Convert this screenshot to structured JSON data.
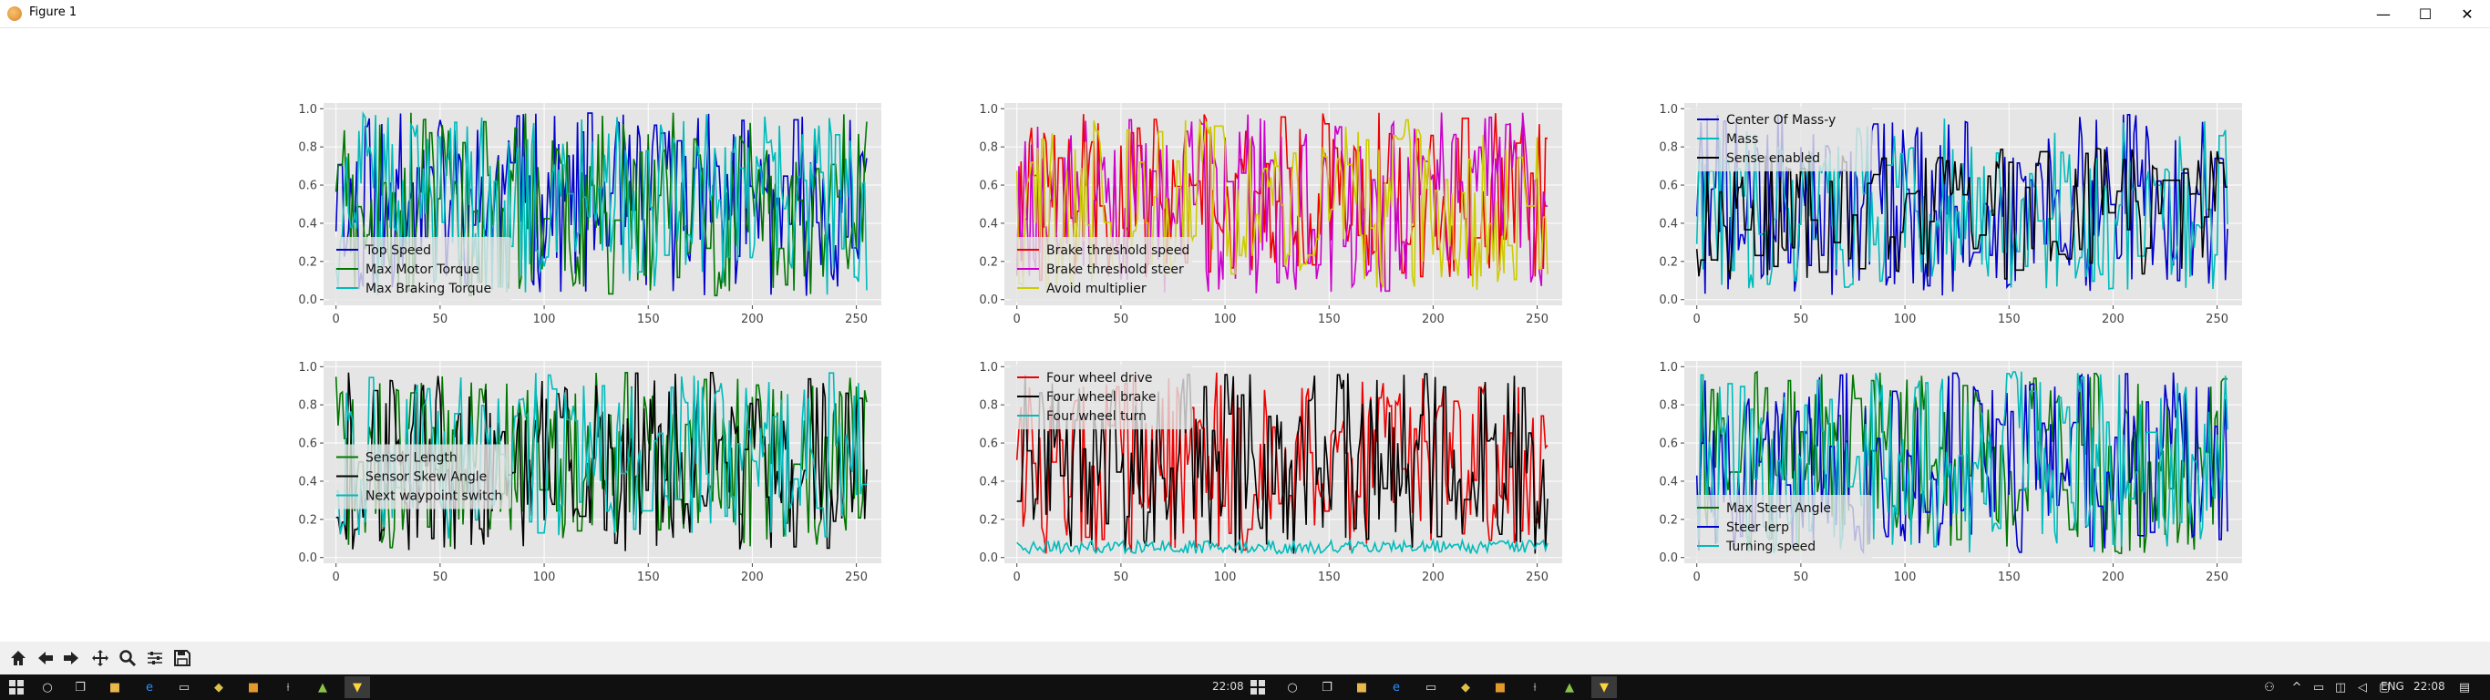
{
  "window": {
    "title": "Figure 1",
    "minimize": "—",
    "maximize": "☐",
    "close": "✕"
  },
  "colors": {
    "axes_bg": "#e5e5e5",
    "grid": "#ffffff",
    "tick": "#444444"
  },
  "chart_data": [
    {
      "type": "line",
      "title": "",
      "xlabel": "",
      "ylabel": "",
      "xlim": [
        -6,
        262
      ],
      "ylim": [
        -0.03,
        1.03
      ],
      "xticks": [
        0,
        50,
        100,
        150,
        200,
        250
      ],
      "yticks": [
        0.0,
        0.2,
        0.4,
        0.6,
        0.8,
        1.0
      ],
      "legend_loc": "lower-left",
      "grid": true,
      "n": 256,
      "series": [
        {
          "name": "Top Speed",
          "color": "#0000cc",
          "min": 0.02,
          "max": 0.98,
          "seed": 11,
          "jump": 0.8
        },
        {
          "name": "Max Motor Torque",
          "color": "#007700",
          "min": 0.02,
          "max": 0.98,
          "seed": 23,
          "jump": 0.8
        },
        {
          "name": "Max Braking Torque",
          "color": "#00bbbb",
          "min": 0.02,
          "max": 0.98,
          "seed": 37,
          "jump": 0.8
        }
      ]
    },
    {
      "type": "line",
      "title": "",
      "xlabel": "",
      "ylabel": "",
      "xlim": [
        -6,
        262
      ],
      "ylim": [
        -0.03,
        1.03
      ],
      "xticks": [
        0,
        50,
        100,
        150,
        200,
        250
      ],
      "yticks": [
        0.0,
        0.2,
        0.4,
        0.6,
        0.8,
        1.0
      ],
      "legend_loc": "lower-left",
      "grid": true,
      "n": 256,
      "series": [
        {
          "name": "Brake threshold speed",
          "color": "#ee0000",
          "min": 0.1,
          "max": 0.98,
          "seed": 41,
          "jump": 0.7
        },
        {
          "name": "Brake threshold steer",
          "color": "#cc00cc",
          "min": 0.02,
          "max": 0.98,
          "seed": 53,
          "jump": 0.8
        },
        {
          "name": "Avoid multiplier",
          "color": "#cccc00",
          "min": 0.05,
          "max": 0.95,
          "seed": 67,
          "jump": 0.7
        }
      ]
    },
    {
      "type": "line",
      "title": "",
      "xlabel": "",
      "ylabel": "",
      "xlim": [
        -6,
        262
      ],
      "ylim": [
        -0.03,
        1.03
      ],
      "xticks": [
        0,
        50,
        100,
        150,
        200,
        250
      ],
      "yticks": [
        0.0,
        0.2,
        0.4,
        0.6,
        0.8,
        1.0
      ],
      "legend_loc": "upper-left",
      "grid": true,
      "n": 256,
      "series": [
        {
          "name": "Center Of Mass-y",
          "color": "#0000cc",
          "min": 0.02,
          "max": 0.98,
          "seed": 71,
          "jump": 0.8
        },
        {
          "name": "Mass",
          "color": "#00bbbb",
          "min": 0.05,
          "max": 0.95,
          "seed": 83,
          "jump": 0.7
        },
        {
          "name": "Sense enabled",
          "color": "#000000",
          "min": 0.1,
          "max": 0.8,
          "seed": 97,
          "jump": 0.5
        }
      ]
    },
    {
      "type": "line",
      "title": "",
      "xlabel": "",
      "ylabel": "",
      "xlim": [
        -6,
        262
      ],
      "ylim": [
        -0.03,
        1.03
      ],
      "xticks": [
        0,
        50,
        100,
        150,
        200,
        250
      ],
      "yticks": [
        0.0,
        0.2,
        0.4,
        0.6,
        0.8,
        1.0
      ],
      "legend_loc": "center-left",
      "grid": true,
      "n": 256,
      "series": [
        {
          "name": "Sensor Length",
          "color": "#007700",
          "min": 0.05,
          "max": 0.97,
          "seed": 101,
          "jump": 0.8
        },
        {
          "name": "Sensor Skew Angle",
          "color": "#000000",
          "min": 0.03,
          "max": 0.97,
          "seed": 113,
          "jump": 0.8
        },
        {
          "name": "Next waypoint switch",
          "color": "#00bbbb",
          "min": 0.1,
          "max": 0.97,
          "seed": 127,
          "jump": 0.7
        }
      ]
    },
    {
      "type": "line",
      "title": "",
      "xlabel": "",
      "ylabel": "",
      "xlim": [
        -6,
        262
      ],
      "ylim": [
        -0.03,
        1.03
      ],
      "xticks": [
        0,
        50,
        100,
        150,
        200,
        250
      ],
      "yticks": [
        0.0,
        0.2,
        0.4,
        0.6,
        0.8,
        1.0
      ],
      "legend_loc": "upper-left",
      "grid": true,
      "n": 256,
      "series": [
        {
          "name": "Four wheel drive",
          "color": "#ee0000",
          "min": 0.02,
          "max": 0.97,
          "seed": 131,
          "jump": 0.8
        },
        {
          "name": "Four wheel brake",
          "color": "#000000",
          "min": 0.02,
          "max": 0.97,
          "seed": 139,
          "jump": 0.8
        },
        {
          "name": "Four wheel turn",
          "color": "#00bbbb",
          "min": 0.02,
          "max": 0.09,
          "seed": 149,
          "jump": 1.0
        }
      ]
    },
    {
      "type": "line",
      "title": "",
      "xlabel": "",
      "ylabel": "",
      "xlim": [
        -6,
        262
      ],
      "ylim": [
        -0.03,
        1.03
      ],
      "xticks": [
        0,
        50,
        100,
        150,
        200,
        250
      ],
      "yticks": [
        0.0,
        0.2,
        0.4,
        0.6,
        0.8,
        1.0
      ],
      "legend_loc": "lower-left",
      "grid": true,
      "n": 256,
      "series": [
        {
          "name": "Max Steer Angle",
          "color": "#007700",
          "min": 0.02,
          "max": 0.98,
          "seed": 151,
          "jump": 0.8
        },
        {
          "name": "Steer lerp",
          "color": "#0000cc",
          "min": 0.02,
          "max": 0.98,
          "seed": 163,
          "jump": 0.8
        },
        {
          "name": "Turning speed",
          "color": "#00bbbb",
          "min": 0.02,
          "max": 0.98,
          "seed": 173,
          "jump": 0.8
        }
      ]
    }
  ],
  "toolbar": {
    "items": [
      "home-icon",
      "back-icon",
      "forward-icon",
      "pan-icon",
      "zoom-icon",
      "configure-subplots-icon",
      "save-icon"
    ]
  },
  "taskbar": {
    "time_center": "22:08",
    "language": "ENG",
    "time_right": "22:08"
  }
}
